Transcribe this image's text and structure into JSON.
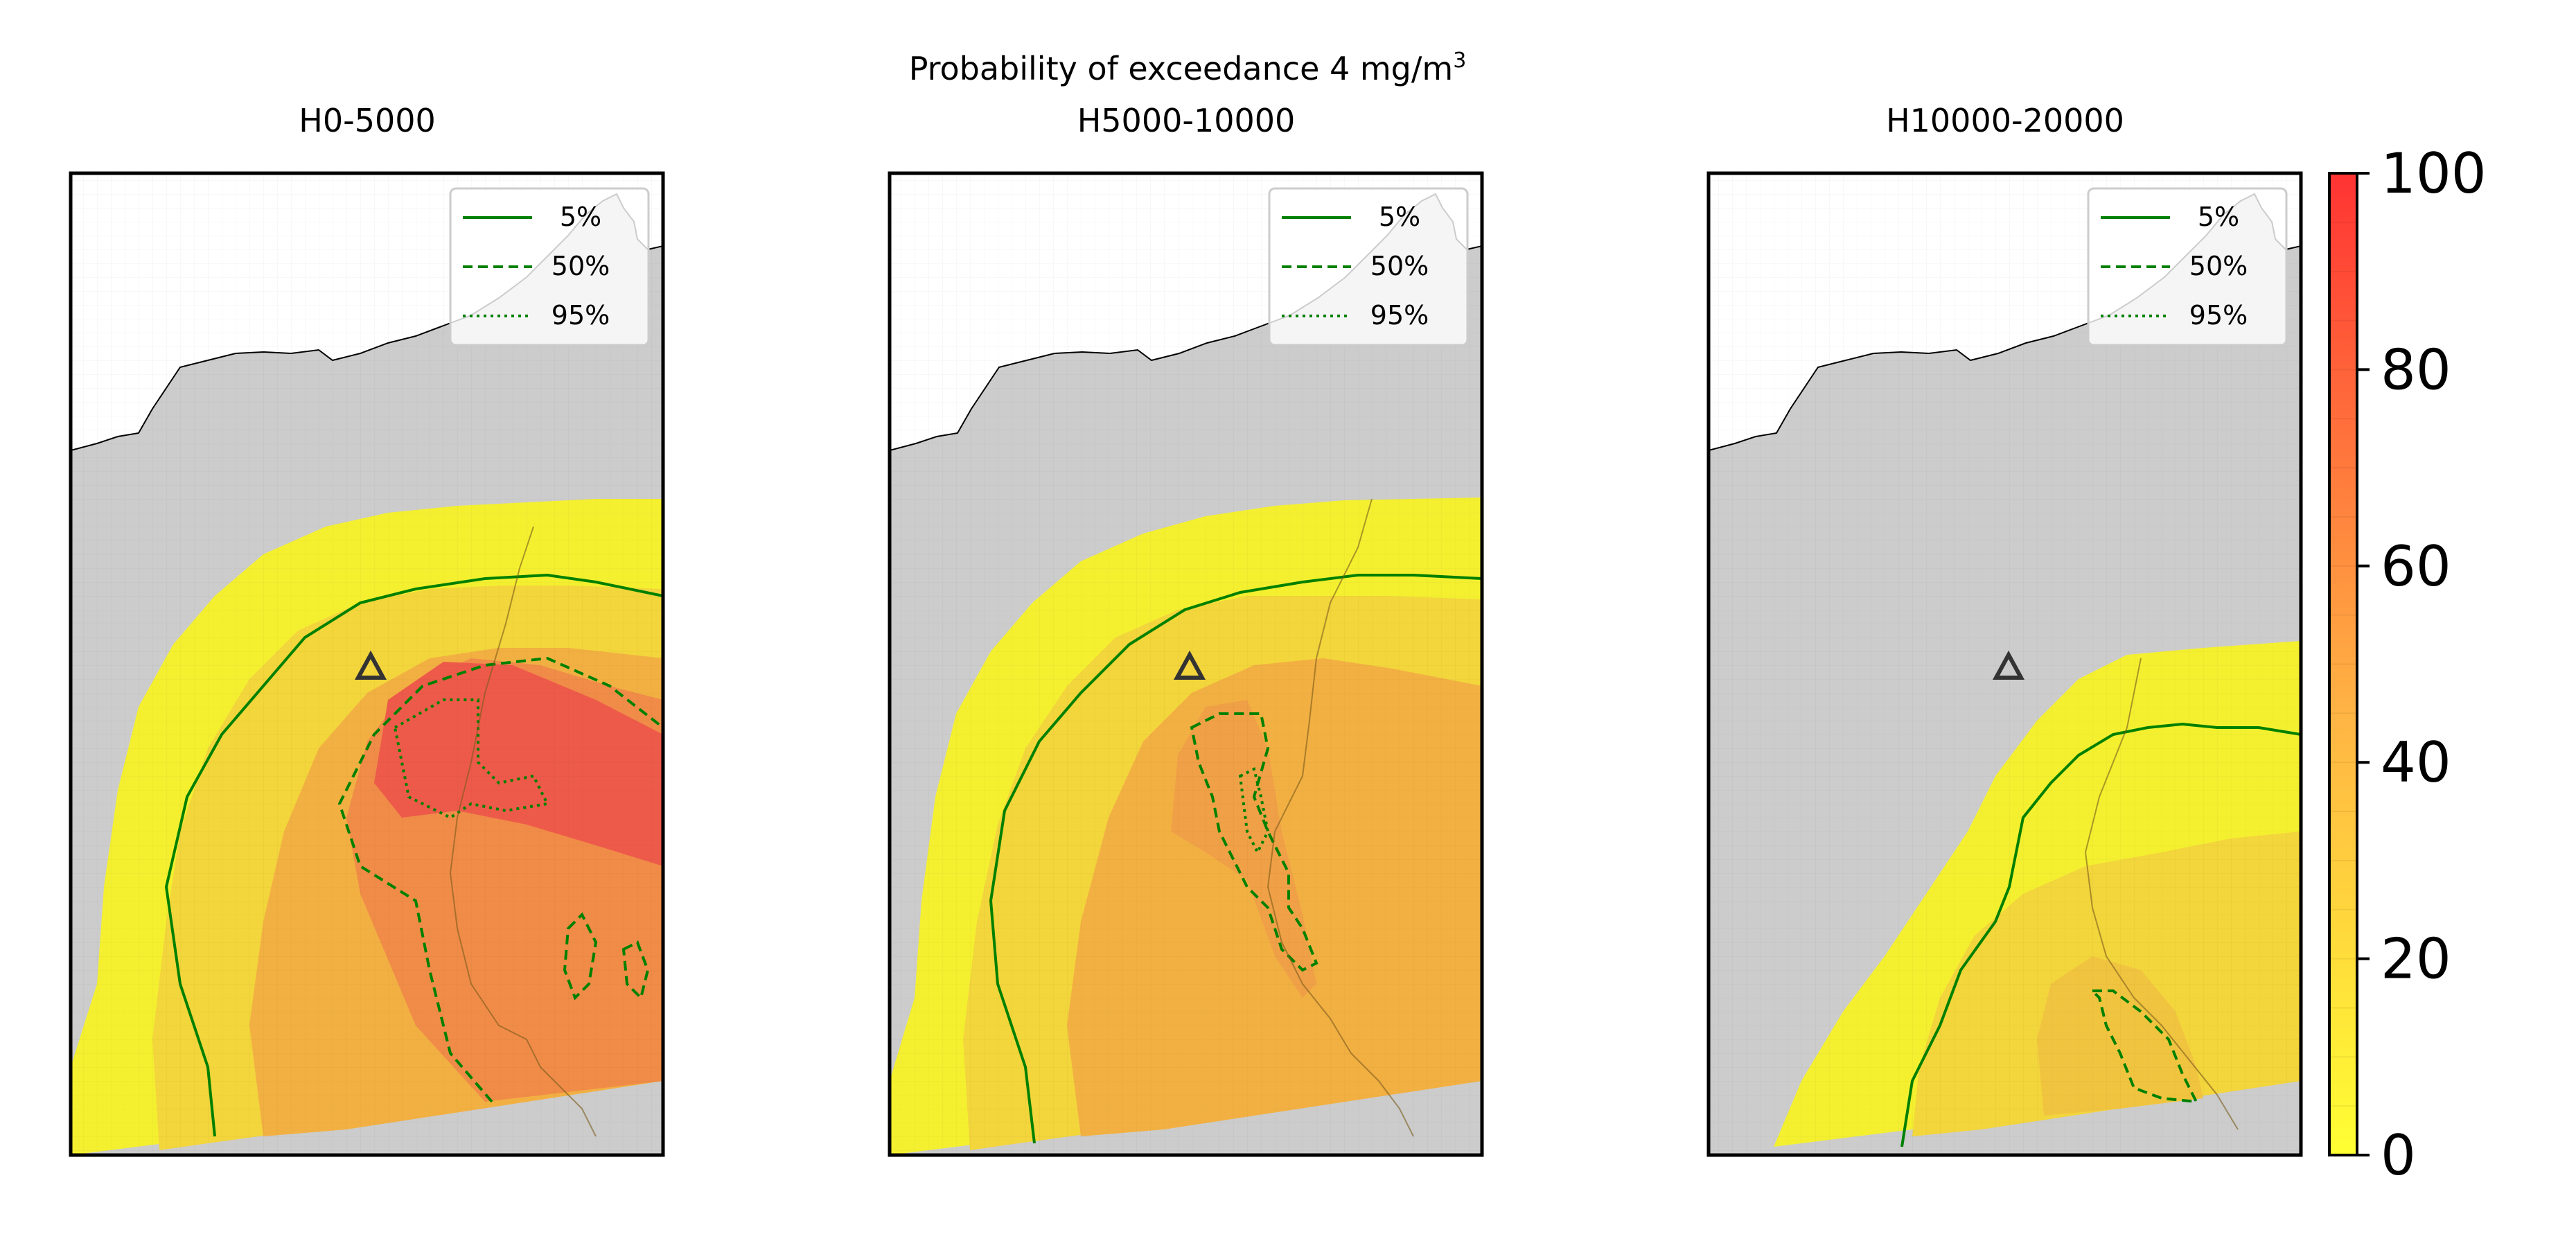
{
  "figure": {
    "suptitle_main": "Probability of exceedance 4 mg/m",
    "suptitle_sup": "3"
  },
  "panels": [
    {
      "title": "H0-5000",
      "contour_levels": [
        5,
        50,
        95
      ]
    },
    {
      "title": "H5000-10000",
      "contour_levels": [
        5,
        50,
        95
      ]
    },
    {
      "title": "H10000-20000",
      "contour_levels": [
        5,
        50,
        95
      ]
    }
  ],
  "legend": {
    "entries": [
      {
        "label": "5%",
        "style": "solid"
      },
      {
        "label": "50%",
        "style": "dashed"
      },
      {
        "label": "95%",
        "style": "dotted"
      }
    ],
    "line_color": "#008000"
  },
  "colorbar": {
    "ticks": [
      "0",
      "20",
      "40",
      "60",
      "80",
      "100"
    ],
    "range": [
      0,
      100
    ],
    "colors": [
      "#ffff33",
      "#ffa64d",
      "#ff3333"
    ]
  },
  "colors": {
    "land": "#cccccc",
    "sea": "#ffffff",
    "contour": "#008000",
    "vent_marker": "#333333"
  },
  "vent_marker_icon": "triangle-icon"
}
